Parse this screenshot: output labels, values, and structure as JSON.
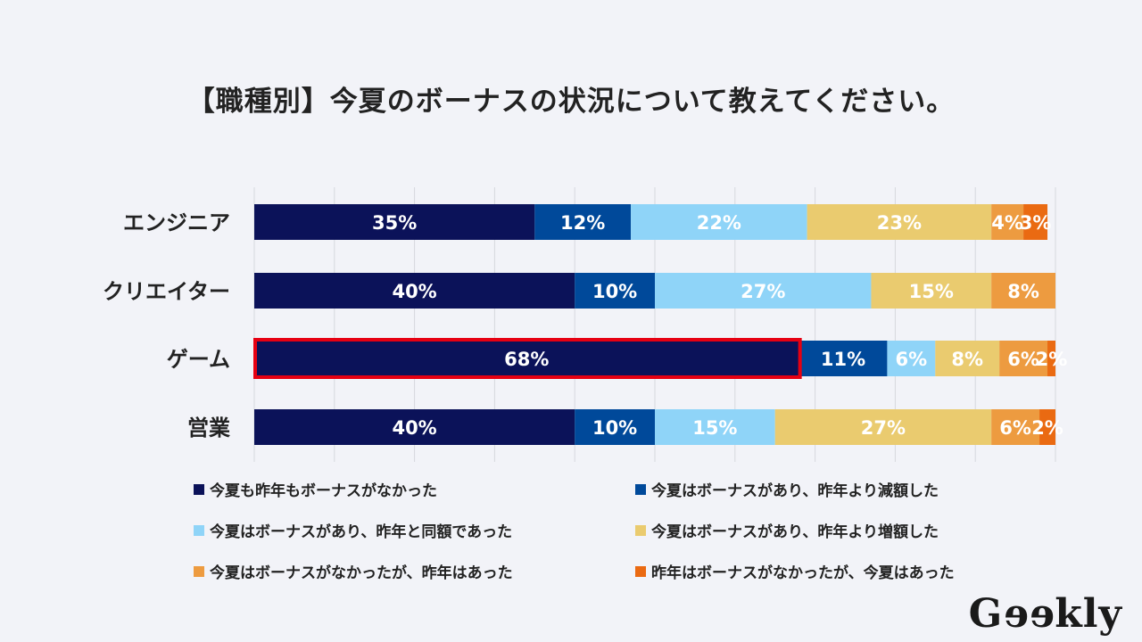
{
  "chart_data": {
    "type": "bar",
    "orientation": "horizontal",
    "stacked": true,
    "title": "【職種別】今夏のボーナスの状況について教えてください。",
    "categories": [
      "エンジニア",
      "クリエイター",
      "ゲーム",
      "営業"
    ],
    "series": [
      {
        "name": "今夏も昨年もボーナスがなかった",
        "color": "#0b1259",
        "values": [
          35,
          40,
          68,
          40
        ]
      },
      {
        "name": "今夏はボーナスがあり、昨年より減額した",
        "color": "#00499a",
        "values": [
          12,
          10,
          11,
          10
        ]
      },
      {
        "name": "今夏はボーナスがあり、昨年と同額であった",
        "color": "#8fd4f8",
        "values": [
          22,
          27,
          6,
          15
        ]
      },
      {
        "name": "今夏はボーナスがあり、昨年より増額した",
        "color": "#eacb6f",
        "values": [
          23,
          15,
          8,
          27
        ]
      },
      {
        "name": "今夏はボーナスがなかったが、昨年はあった",
        "color": "#ed9b40",
        "values": [
          4,
          8,
          6,
          6
        ]
      },
      {
        "name": "昨年はボーナスがなかったが、今夏はあった",
        "color": "#ea6a12",
        "values": [
          3,
          0,
          2,
          2
        ]
      }
    ],
    "value_suffix": "%",
    "xlim": [
      0,
      100
    ],
    "grid": true,
    "legend_position": "bottom",
    "highlight": {
      "category": "ゲーム",
      "series_index": 0,
      "color": "#e60012"
    }
  },
  "logo": "Geekly"
}
